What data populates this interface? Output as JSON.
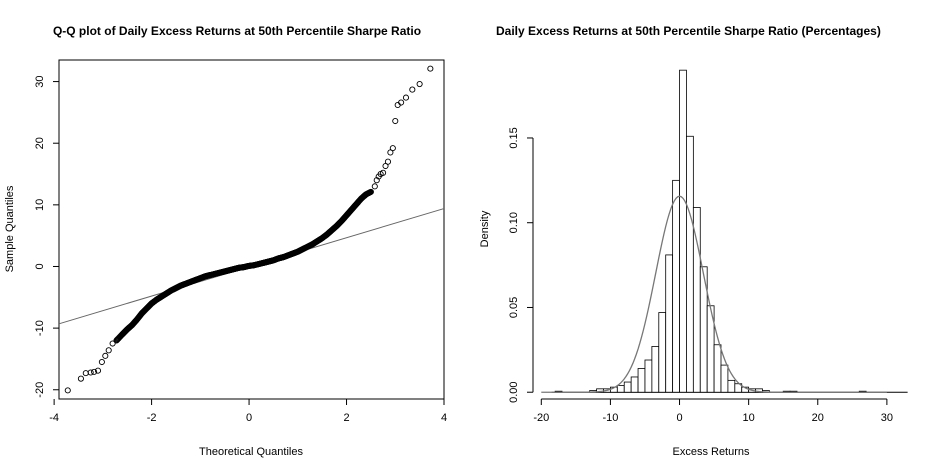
{
  "chart_data": [
    {
      "type": "scatter",
      "title": "Q-Q plot of Daily Excess Returns at 50th Percentile Sharpe Ratio",
      "xlabel": "Theoretical Quantiles",
      "ylabel": "Sample Quantiles",
      "xlim": [
        -3.9,
        4.0
      ],
      "ylim": [
        -21.5,
        33.5
      ],
      "xticks": [
        "-4",
        "-2",
        "0",
        "2",
        "4"
      ],
      "yticks": [
        "-20",
        "-10",
        "0",
        "10",
        "20",
        "30"
      ],
      "reference_line": {
        "x": [
          -3.9,
          4.0
        ],
        "y": [
          -9.3,
          9.4
        ]
      },
      "points": [
        {
          "x": -3.72,
          "y": -20.1
        },
        {
          "x": -3.45,
          "y": -18.2
        },
        {
          "x": -3.35,
          "y": -17.3
        },
        {
          "x": -3.25,
          "y": -17.2
        },
        {
          "x": -3.18,
          "y": -17.1
        },
        {
          "x": -3.1,
          "y": -16.9
        },
        {
          "x": -3.02,
          "y": -15.5
        },
        {
          "x": -2.95,
          "y": -14.5
        },
        {
          "x": -2.88,
          "y": -13.6
        },
        {
          "x": -2.8,
          "y": -12.5
        },
        {
          "x": -2.72,
          "y": -12.0
        },
        {
          "x": -2.6,
          "y": -11.0
        },
        {
          "x": -2.5,
          "y": -10.2
        },
        {
          "x": -2.4,
          "y": -9.5
        },
        {
          "x": -2.3,
          "y": -8.6
        },
        {
          "x": -2.2,
          "y": -7.6
        },
        {
          "x": -2.1,
          "y": -6.8
        },
        {
          "x": -2.0,
          "y": -6.0
        },
        {
          "x": -1.9,
          "y": -5.4
        },
        {
          "x": -1.8,
          "y": -4.9
        },
        {
          "x": -1.7,
          "y": -4.4
        },
        {
          "x": -1.6,
          "y": -3.9
        },
        {
          "x": -1.5,
          "y": -3.5
        },
        {
          "x": -1.4,
          "y": -3.1
        },
        {
          "x": -1.3,
          "y": -2.8
        },
        {
          "x": -1.2,
          "y": -2.5
        },
        {
          "x": -1.1,
          "y": -2.2
        },
        {
          "x": -1.0,
          "y": -1.9
        },
        {
          "x": -0.9,
          "y": -1.6
        },
        {
          "x": -0.8,
          "y": -1.4
        },
        {
          "x": -0.7,
          "y": -1.2
        },
        {
          "x": -0.6,
          "y": -1.0
        },
        {
          "x": -0.5,
          "y": -0.8
        },
        {
          "x": -0.4,
          "y": -0.6
        },
        {
          "x": -0.3,
          "y": -0.4
        },
        {
          "x": -0.2,
          "y": -0.2
        },
        {
          "x": -0.1,
          "y": -0.1
        },
        {
          "x": 0.0,
          "y": 0.1
        },
        {
          "x": 0.1,
          "y": 0.2
        },
        {
          "x": 0.2,
          "y": 0.4
        },
        {
          "x": 0.3,
          "y": 0.6
        },
        {
          "x": 0.4,
          "y": 0.8
        },
        {
          "x": 0.5,
          "y": 1.0
        },
        {
          "x": 0.6,
          "y": 1.3
        },
        {
          "x": 0.7,
          "y": 1.5
        },
        {
          "x": 0.8,
          "y": 1.8
        },
        {
          "x": 0.9,
          "y": 2.1
        },
        {
          "x": 1.0,
          "y": 2.4
        },
        {
          "x": 1.1,
          "y": 2.8
        },
        {
          "x": 1.2,
          "y": 3.2
        },
        {
          "x": 1.3,
          "y": 3.6
        },
        {
          "x": 1.4,
          "y": 4.1
        },
        {
          "x": 1.5,
          "y": 4.6
        },
        {
          "x": 1.6,
          "y": 5.2
        },
        {
          "x": 1.7,
          "y": 5.9
        },
        {
          "x": 1.8,
          "y": 6.6
        },
        {
          "x": 1.9,
          "y": 7.4
        },
        {
          "x": 2.0,
          "y": 8.3
        },
        {
          "x": 2.1,
          "y": 9.2
        },
        {
          "x": 2.2,
          "y": 10.1
        },
        {
          "x": 2.3,
          "y": 11.0
        },
        {
          "x": 2.4,
          "y": 11.7
        },
        {
          "x": 2.5,
          "y": 12.1
        },
        {
          "x": 2.58,
          "y": 13.0
        },
        {
          "x": 2.62,
          "y": 14.0
        },
        {
          "x": 2.66,
          "y": 14.6
        },
        {
          "x": 2.7,
          "y": 15.0
        },
        {
          "x": 2.75,
          "y": 15.2
        },
        {
          "x": 2.8,
          "y": 16.3
        },
        {
          "x": 2.85,
          "y": 17.0
        },
        {
          "x": 2.9,
          "y": 18.5
        },
        {
          "x": 2.95,
          "y": 19.2
        },
        {
          "x": 3.0,
          "y": 23.6
        },
        {
          "x": 3.05,
          "y": 26.2
        },
        {
          "x": 3.12,
          "y": 26.6
        },
        {
          "x": 3.22,
          "y": 27.4
        },
        {
          "x": 3.35,
          "y": 28.7
        },
        {
          "x": 3.5,
          "y": 29.6
        },
        {
          "x": 3.72,
          "y": 32.1
        }
      ]
    },
    {
      "type": "bar",
      "title": "Daily Excess Returns at 50th Percentile Sharpe Ratio (Percentages)",
      "xlabel": "Excess Returns",
      "ylabel": "Density",
      "xlim": [
        -21.2,
        33.2
      ],
      "ylim": [
        -0.004,
        0.196
      ],
      "xticks": [
        -20,
        -10,
        0,
        10,
        20,
        30
      ],
      "yticks": [
        "0.00",
        "0.05",
        "0.10",
        "0.15"
      ],
      "bin_width": 1,
      "bins": [
        {
          "x0": -13,
          "density": 0.001
        },
        {
          "x0": -12,
          "density": 0.002
        },
        {
          "x0": -11,
          "density": 0.002
        },
        {
          "x0": -10,
          "density": 0.003
        },
        {
          "x0": -9,
          "density": 0.004
        },
        {
          "x0": -8,
          "density": 0.006
        },
        {
          "x0": -7,
          "density": 0.009
        },
        {
          "x0": -6,
          "density": 0.014
        },
        {
          "x0": -5,
          "density": 0.019
        },
        {
          "x0": -4,
          "density": 0.027
        },
        {
          "x0": -3,
          "density": 0.047
        },
        {
          "x0": -2,
          "density": 0.081
        },
        {
          "x0": -1,
          "density": 0.125
        },
        {
          "x0": 0,
          "density": 0.19
        },
        {
          "x0": 1,
          "density": 0.151
        },
        {
          "x0": 2,
          "density": 0.109
        },
        {
          "x0": 3,
          "density": 0.074
        },
        {
          "x0": 4,
          "density": 0.051
        },
        {
          "x0": 5,
          "density": 0.028
        },
        {
          "x0": 6,
          "density": 0.016
        },
        {
          "x0": 7,
          "density": 0.007
        },
        {
          "x0": 8,
          "density": 0.005
        },
        {
          "x0": 9,
          "density": 0.003
        },
        {
          "x0": 10,
          "density": 0.002
        },
        {
          "x0": 11,
          "density": 0.002
        },
        {
          "x0": 12,
          "density": 0.001
        }
      ],
      "density_curve": {
        "mean": 0.0,
        "sd": 3.45
      },
      "colors": {
        "curve": "#777777",
        "bars": "#000000"
      }
    }
  ]
}
